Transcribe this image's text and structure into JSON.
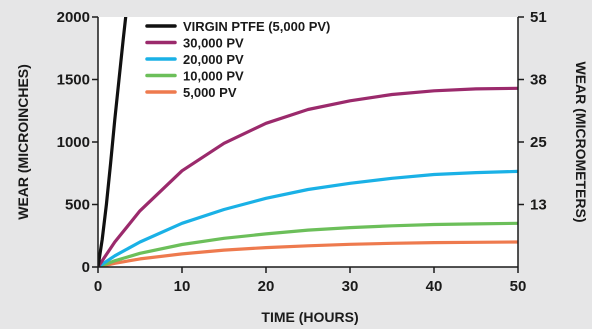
{
  "chart_data": {
    "type": "line",
    "xlabel": "TIME (HOURS)",
    "ylabel": "WEAR (MICROINCHES)",
    "y2label": "WEAR (MICROMETERS)",
    "xlim": [
      0,
      50
    ],
    "ylim": [
      0,
      2000
    ],
    "x_ticks": [
      0,
      10,
      20,
      30,
      40,
      50
    ],
    "y_ticks": [
      0,
      500,
      1000,
      1500,
      2000
    ],
    "y2_ticks": [
      {
        "label": "13",
        "y": 500
      },
      {
        "label": "25",
        "y": 1000
      },
      {
        "label": "38",
        "y": 1500
      },
      {
        "label": "51",
        "y": 2000
      }
    ],
    "grid": false,
    "legend_position": "top-left",
    "series": [
      {
        "name": "VIRGIN PTFE (5,000 PV)",
        "color": "#111111",
        "x": [
          0,
          0.5,
          1,
          1.5,
          2,
          2.5,
          3,
          3.3
        ],
        "y": [
          0,
          220,
          500,
          830,
          1180,
          1500,
          1820,
          2000
        ]
      },
      {
        "name": "30,000 PV",
        "color": "#9b2a6c",
        "x": [
          0,
          2,
          5,
          10,
          15,
          20,
          25,
          30,
          35,
          40,
          45,
          50
        ],
        "y": [
          0,
          200,
          450,
          770,
          990,
          1150,
          1260,
          1330,
          1380,
          1410,
          1425,
          1430
        ]
      },
      {
        "name": "20,000 PV",
        "color": "#1ab1e6",
        "x": [
          0,
          2,
          5,
          10,
          15,
          20,
          25,
          30,
          35,
          40,
          45,
          50
        ],
        "y": [
          0,
          90,
          200,
          350,
          460,
          550,
          620,
          670,
          710,
          740,
          755,
          765
        ]
      },
      {
        "name": "10,000 PV",
        "color": "#6cbf5a",
        "x": [
          0,
          2,
          5,
          10,
          15,
          20,
          25,
          30,
          35,
          40,
          45,
          50
        ],
        "y": [
          0,
          50,
          110,
          180,
          230,
          265,
          295,
          315,
          330,
          340,
          345,
          350
        ]
      },
      {
        "name": "5,000 PV",
        "color": "#ee7a4e",
        "x": [
          0,
          2,
          5,
          10,
          15,
          20,
          25,
          30,
          35,
          40,
          45,
          50
        ],
        "y": [
          0,
          30,
          65,
          105,
          135,
          155,
          170,
          182,
          190,
          195,
          198,
          200
        ]
      }
    ]
  }
}
